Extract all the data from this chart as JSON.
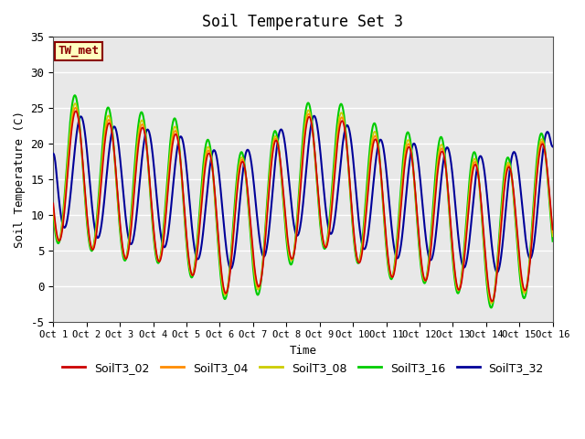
{
  "title": "Soil Temperature Set 3",
  "xlabel": "Time",
  "ylabel": "Soil Temperature (C)",
  "ylim": [
    -5,
    35
  ],
  "xlim": [
    0,
    15
  ],
  "xtick_labels": [
    "Oct 1",
    "Oct 2",
    "Oct 3",
    "Oct 4",
    "Oct 5",
    "Oct 6",
    "Oct 7",
    "Oct 8",
    "Oct 9",
    "Oct 10",
    "Oct 11",
    "Oct 12",
    "Oct 13",
    "Oct 14",
    "Oct 15",
    "Oct 16"
  ],
  "ytick_labels": [
    -5,
    0,
    5,
    10,
    15,
    20,
    25,
    30,
    35
  ],
  "annotation_text": "TW_met",
  "annotation_color": "#8B0000",
  "annotation_bg": "#FFFFC0",
  "annotation_border": "#8B0000",
  "series": {
    "SoilT3_02": {
      "color": "#CC0000",
      "linewidth": 1.2
    },
    "SoilT3_04": {
      "color": "#FF8C00",
      "linewidth": 1.2
    },
    "SoilT3_08": {
      "color": "#CCCC00",
      "linewidth": 1.2
    },
    "SoilT3_16": {
      "color": "#00CC00",
      "linewidth": 1.5
    },
    "SoilT3_32": {
      "color": "#000099",
      "linewidth": 1.5
    }
  },
  "background_color": "#E8E8E8",
  "grid_color": "white",
  "font_family": "monospace"
}
